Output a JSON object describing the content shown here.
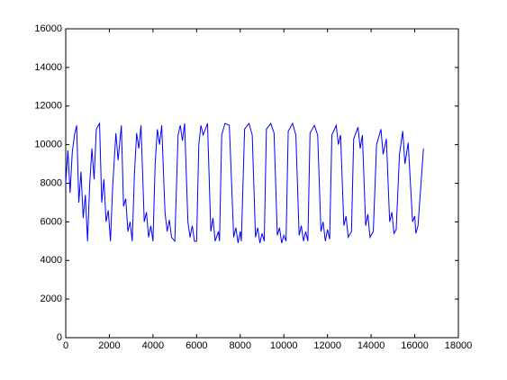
{
  "chart_data": {
    "type": "line",
    "x": [
      0,
      100,
      200,
      300,
      400,
      500,
      600,
      700,
      800,
      900,
      1000,
      1100,
      1200,
      1300,
      1400,
      1550,
      1650,
      1750,
      1850,
      1950,
      2050,
      2150,
      2300,
      2400,
      2550,
      2650,
      2750,
      2850,
      2950,
      3050,
      3150,
      3250,
      3350,
      3450,
      3600,
      3700,
      3800,
      3900,
      4000,
      4100,
      4200,
      4300,
      4400,
      4550,
      4650,
      4750,
      4850,
      5000,
      5150,
      5250,
      5350,
      5450,
      5600,
      5700,
      5800,
      5900,
      6000,
      6100,
      6200,
      6300,
      6500,
      6650,
      6750,
      6850,
      7000,
      7050,
      7150,
      7300,
      7500,
      7700,
      7800,
      7900,
      8000,
      8050,
      8200,
      8400,
      8550,
      8700,
      8800,
      8900,
      9000,
      9100,
      9200,
      9400,
      9550,
      9700,
      9800,
      9900,
      10000,
      10100,
      10200,
      10400,
      10550,
      10700,
      10800,
      10900,
      11000,
      11100,
      11200,
      11400,
      11550,
      11700,
      11800,
      11900,
      12000,
      12100,
      12200,
      12400,
      12500,
      12600,
      12750,
      12850,
      12950,
      13100,
      13200,
      13400,
      13500,
      13600,
      13750,
      13850,
      13950,
      14100,
      14250,
      14450,
      14550,
      14700,
      14850,
      14950,
      15050,
      15150,
      15300,
      15450,
      15550,
      15700,
      15900,
      16000,
      16050,
      16150,
      16400
    ],
    "series": [
      {
        "color": "#0000ff",
        "values": [
          8000,
          9700,
          7500,
          9600,
          10500,
          11000,
          7000,
          8600,
          6200,
          7400,
          5000,
          8000,
          9800,
          8200,
          10800,
          11100,
          7000,
          8200,
          6000,
          6600,
          5000,
          7800,
          10600,
          9200,
          11000,
          6800,
          7200,
          5500,
          6000,
          5000,
          8500,
          10600,
          9800,
          11000,
          6000,
          6500,
          5200,
          5800,
          5000,
          9000,
          10800,
          10000,
          11000,
          6500,
          5500,
          6100,
          5200,
          5000,
          10500,
          11000,
          10200,
          11100,
          6000,
          5200,
          5800,
          5000,
          5000,
          10000,
          11000,
          10500,
          11100,
          5500,
          6200,
          5000,
          5500,
          5000,
          10500,
          11100,
          11000,
          5200,
          5700,
          4900,
          5500,
          5000,
          10800,
          11100,
          10500,
          5200,
          5700,
          4900,
          5400,
          5000,
          10800,
          11100,
          10600,
          5300,
          5700,
          4900,
          5300,
          5000,
          10700,
          11100,
          10500,
          5300,
          5800,
          5000,
          5500,
          5000,
          10600,
          11000,
          10500,
          5500,
          6000,
          5000,
          5600,
          5100,
          10500,
          11000,
          10000,
          10500,
          5800,
          6300,
          5200,
          5500,
          10300,
          10900,
          9800,
          10500,
          5800,
          6400,
          5200,
          5500,
          10000,
          10800,
          9500,
          10300,
          6000,
          6500,
          5400,
          5600,
          9500,
          10700,
          9000,
          10100,
          6000,
          6300,
          5400,
          5800,
          9800
        ]
      }
    ],
    "xlim": [
      0,
      18000
    ],
    "xticks": [
      0,
      2000,
      4000,
      6000,
      8000,
      10000,
      12000,
      14000,
      16000,
      18000
    ],
    "ylim": [
      0,
      16000
    ],
    "yticks": [
      0,
      2000,
      4000,
      6000,
      8000,
      10000,
      12000,
      14000,
      16000
    ]
  }
}
